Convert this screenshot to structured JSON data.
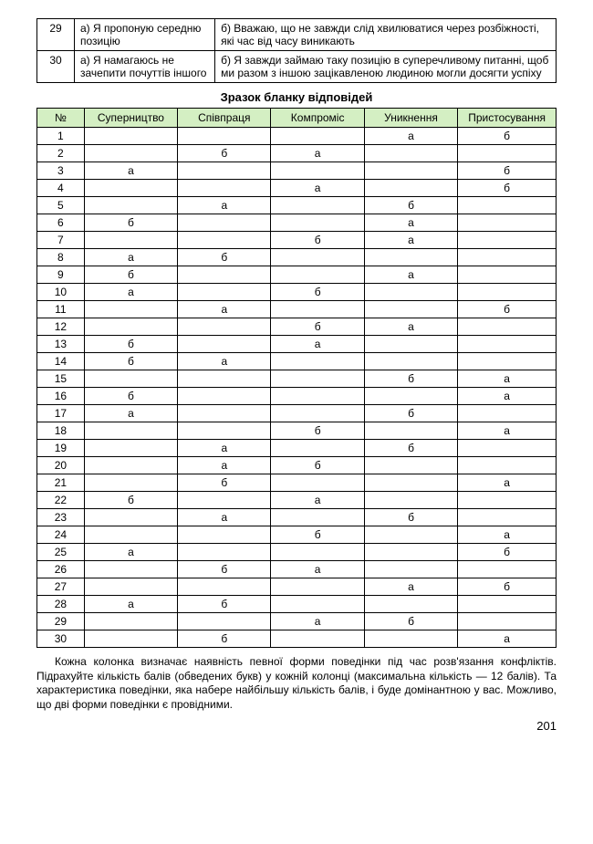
{
  "top_rows": [
    {
      "n": "29",
      "a": "а) Я пропоную середню позицію",
      "b": "б) Вважаю, що не завжди слід хвилюватися через розбіжності, які час від часу виникають"
    },
    {
      "n": "30",
      "a": "а) Я намагаюсь не зачепити почуттів іншого",
      "b": "б) Я завжди займаю таку позицію в суперечливому питанні, щоб ми разом з іншою зацікавленою людиною могли досягти успіху"
    }
  ],
  "subtitle": "Зразок бланку відповідей",
  "columns": [
    "№",
    "Суперництво",
    "Співпраця",
    "Компроміс",
    "Уникнення",
    "Пристосування"
  ],
  "rows": [
    {
      "n": "1",
      "c": [
        "",
        "",
        "",
        "а",
        "б"
      ]
    },
    {
      "n": "2",
      "c": [
        "",
        "б",
        "а",
        "",
        ""
      ]
    },
    {
      "n": "3",
      "c": [
        "а",
        "",
        "",
        "",
        "б"
      ]
    },
    {
      "n": "4",
      "c": [
        "",
        "",
        "а",
        "",
        "б"
      ]
    },
    {
      "n": "5",
      "c": [
        "",
        "а",
        "",
        "б",
        ""
      ]
    },
    {
      "n": "6",
      "c": [
        "б",
        "",
        "",
        "а",
        ""
      ]
    },
    {
      "n": "7",
      "c": [
        "",
        "",
        "б",
        "а",
        ""
      ]
    },
    {
      "n": "8",
      "c": [
        "а",
        "б",
        "",
        "",
        ""
      ]
    },
    {
      "n": "9",
      "c": [
        "б",
        "",
        "",
        "а",
        ""
      ]
    },
    {
      "n": "10",
      "c": [
        "а",
        "",
        "б",
        "",
        ""
      ]
    },
    {
      "n": "11",
      "c": [
        "",
        "а",
        "",
        "",
        "б"
      ]
    },
    {
      "n": "12",
      "c": [
        "",
        "",
        "б",
        "а",
        ""
      ]
    },
    {
      "n": "13",
      "c": [
        "б",
        "",
        "а",
        "",
        ""
      ]
    },
    {
      "n": "14",
      "c": [
        "б",
        "а",
        "",
        "",
        ""
      ]
    },
    {
      "n": "15",
      "c": [
        "",
        "",
        "",
        "б",
        "а"
      ]
    },
    {
      "n": "16",
      "c": [
        "б",
        "",
        "",
        "",
        "а"
      ]
    },
    {
      "n": "17",
      "c": [
        "а",
        "",
        "",
        "б",
        ""
      ]
    },
    {
      "n": "18",
      "c": [
        "",
        "",
        "б",
        "",
        "а"
      ]
    },
    {
      "n": "19",
      "c": [
        "",
        "а",
        "",
        "б",
        ""
      ]
    },
    {
      "n": "20",
      "c": [
        "",
        "а",
        "б",
        "",
        ""
      ]
    },
    {
      "n": "21",
      "c": [
        "",
        "б",
        "",
        "",
        "а"
      ]
    },
    {
      "n": "22",
      "c": [
        "б",
        "",
        "а",
        "",
        ""
      ]
    },
    {
      "n": "23",
      "c": [
        "",
        "а",
        "",
        "б",
        ""
      ]
    },
    {
      "n": "24",
      "c": [
        "",
        "",
        "б",
        "",
        "а"
      ]
    },
    {
      "n": "25",
      "c": [
        "а",
        "",
        "",
        "",
        "б"
      ]
    },
    {
      "n": "26",
      "c": [
        "",
        "б",
        "а",
        "",
        ""
      ]
    },
    {
      "n": "27",
      "c": [
        "",
        "",
        "",
        "а",
        "б"
      ]
    },
    {
      "n": "28",
      "c": [
        "а",
        "б",
        "",
        "",
        ""
      ]
    },
    {
      "n": "29",
      "c": [
        "",
        "",
        "а",
        "б",
        ""
      ]
    },
    {
      "n": "30",
      "c": [
        "",
        "б",
        "",
        "",
        "а"
      ]
    }
  ],
  "body_text": "Кожна колонка визначає наявність певної форми поведінки під час розв'язання конфліктів. Підрахуйте кількість балів (обведених букв) у кожній колонці (максимальна кількість — 12 балів). Та характеристика поведінки, яка набере найбільшу кількість балів, і буде домінантною у вас. Можливо, що дві форми поведінки є провідними.",
  "page_number": "201"
}
